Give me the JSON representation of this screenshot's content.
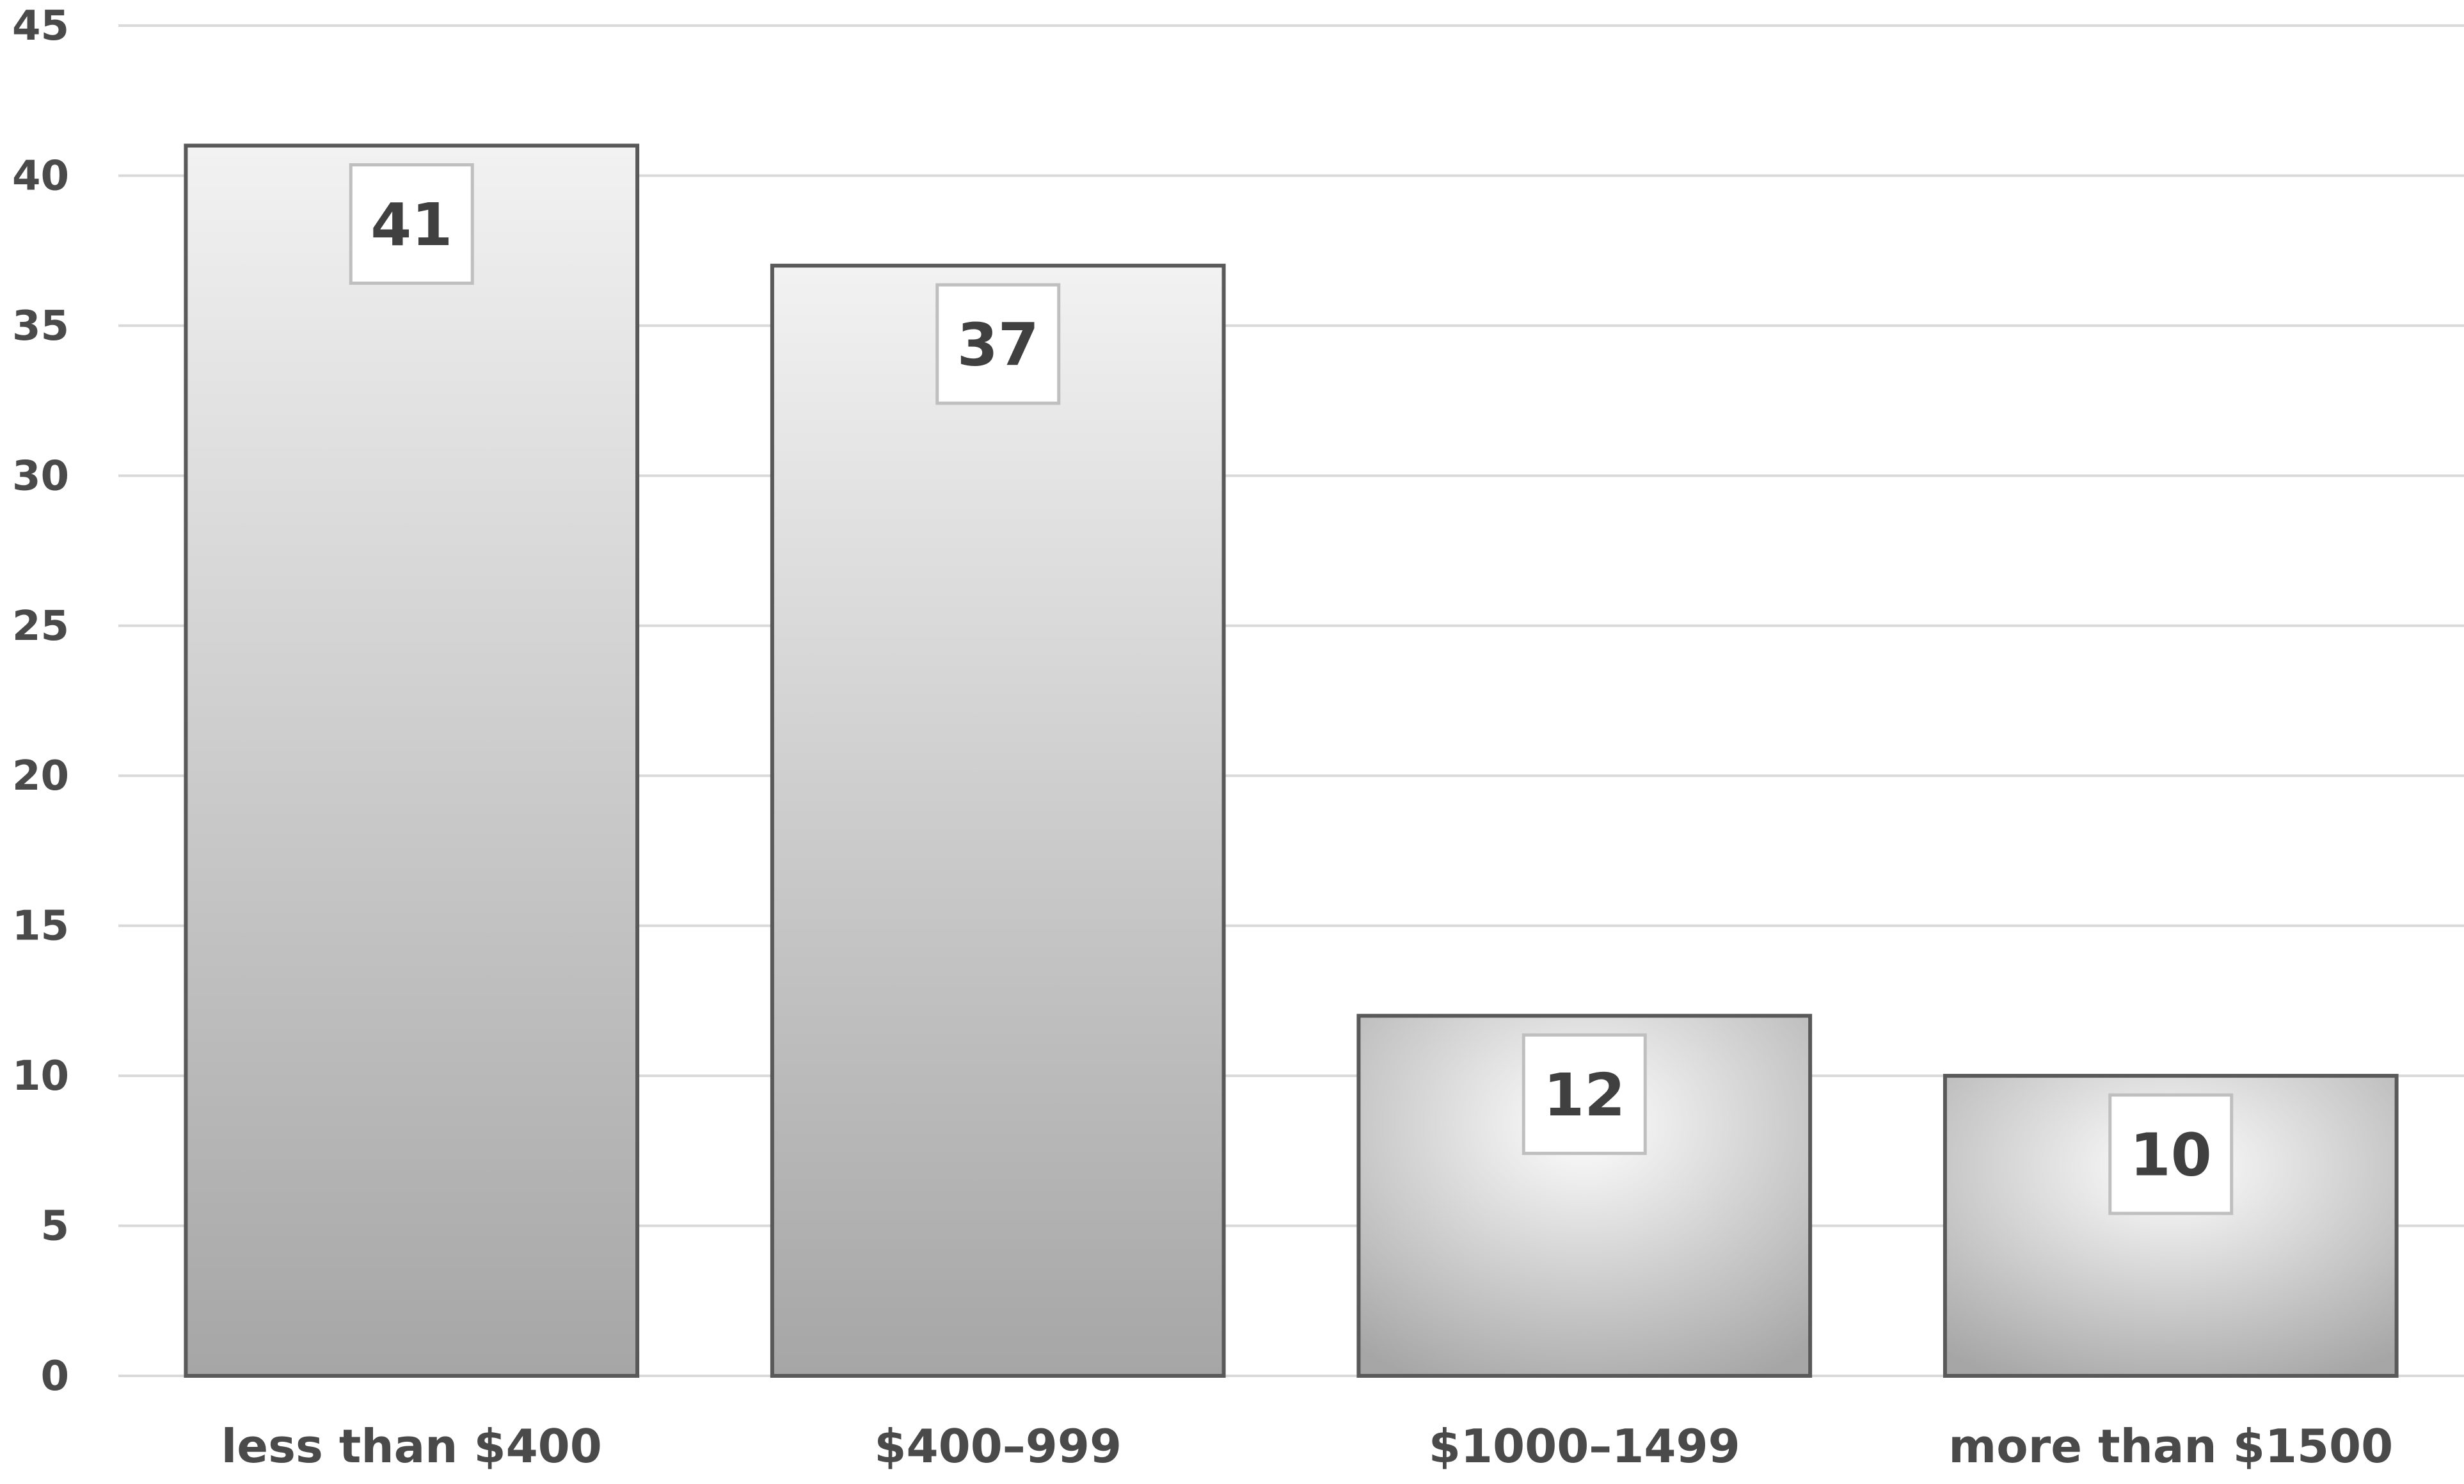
{
  "chart_data": {
    "type": "bar",
    "categories": [
      "less than $400",
      "$400–999",
      "$1000–1499",
      "more than $1500"
    ],
    "values": [
      41,
      37,
      12,
      10
    ],
    "data_labels": [
      "41",
      "37",
      "12",
      "10"
    ],
    "title": "",
    "xlabel": "",
    "ylabel": "",
    "ylim": [
      0,
      45
    ],
    "yticks": [
      0,
      5,
      10,
      15,
      20,
      25,
      30,
      35,
      40,
      45
    ],
    "grid": true,
    "legend": "none",
    "colors": {
      "bar_gradient_top": "#f2f2f2",
      "bar_gradient_bottom": "#a6a6a6",
      "bar_border": "#595959",
      "gridline": "#d9d9d9",
      "label_box_border": "#bfbfbf",
      "label_box_fill": "#ffffff"
    }
  }
}
